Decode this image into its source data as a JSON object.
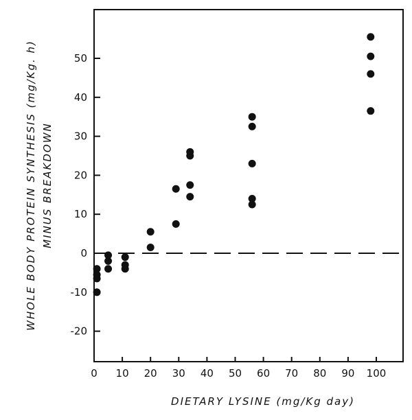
{
  "chart_data": {
    "type": "scatter",
    "xlabel": "DIETARY LYSINE (mg/Kg day)",
    "ylabel_lines": [
      "WHOLE BODY PROTEIN SYNTHESIS (mg/Kg. h)",
      "MINUS BREAKDOWN"
    ],
    "xlim": [
      0,
      105
    ],
    "ylim": [
      -27,
      60
    ],
    "xticks": [
      0,
      10,
      20,
      30,
      40,
      50,
      60,
      70,
      80,
      90,
      100
    ],
    "yticks": [
      -20,
      -10,
      0,
      10,
      20,
      30,
      40,
      50
    ],
    "reference_line": {
      "y": 0,
      "style": "dashed"
    },
    "grid": false,
    "points": [
      [
        1,
        -4
      ],
      [
        1,
        -5.5
      ],
      [
        1,
        -6.5
      ],
      [
        1,
        -10
      ],
      [
        5,
        -0.5
      ],
      [
        5,
        -2
      ],
      [
        5,
        -4
      ],
      [
        11,
        -1
      ],
      [
        11,
        -3
      ],
      [
        11,
        -4
      ],
      [
        20,
        5.5
      ],
      [
        20,
        1.5
      ],
      [
        29,
        16.5
      ],
      [
        29,
        7.5
      ],
      [
        34,
        26
      ],
      [
        34,
        25
      ],
      [
        34,
        17.5
      ],
      [
        34,
        14.5
      ],
      [
        56,
        35
      ],
      [
        56,
        32.5
      ],
      [
        56,
        23
      ],
      [
        56,
        14
      ],
      [
        56,
        12.5
      ],
      [
        98,
        55.5
      ],
      [
        98,
        50.5
      ],
      [
        98,
        46
      ],
      [
        98,
        36.5
      ]
    ]
  }
}
